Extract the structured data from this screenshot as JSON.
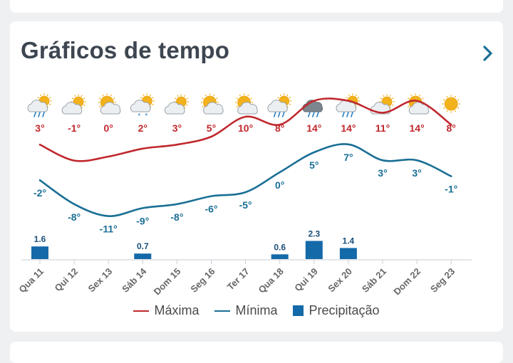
{
  "header": {
    "title": "Gráficos de tempo"
  },
  "colors": {
    "max": "#c0282d",
    "min": "#1a6f95",
    "precip": "#1469a8",
    "axis": "#666666"
  },
  "legend": {
    "max": "Máxima",
    "min": "Mínima",
    "precip": "Precipitação"
  },
  "chart_data": {
    "type": "line",
    "categories": [
      "Qua 11",
      "Qui 12",
      "Sex 13",
      "Sáb 14",
      "Dom 15",
      "Seg 16",
      "Ter 17",
      "Qua 18",
      "Qui 19",
      "Sex 20",
      "Sáb 21",
      "Dom 22",
      "Seg 23"
    ],
    "icons": [
      "rain-cloud-sun",
      "cloud-sun",
      "sun-cloud",
      "snow-cloud-sun",
      "cloud-sun",
      "sun-cloud",
      "sun-cloud",
      "rain-cloud-sun",
      "storm-cloud",
      "rain-cloud-sun",
      "cloud-sun",
      "sun-cloud",
      "sun"
    ],
    "series": [
      {
        "name": "Máxima",
        "values": [
          3,
          -1,
          0,
          2,
          3,
          5,
          10,
          8,
          14,
          14,
          11,
          14,
          8
        ],
        "labels": [
          "3°",
          "-1°",
          "0°",
          "2°",
          "3°",
          "5°",
          "10°",
          "8°",
          "14°",
          "14°",
          "11°",
          "14°",
          "8°"
        ]
      },
      {
        "name": "Mínima",
        "values": [
          -2,
          -8,
          -11,
          -9,
          -8,
          -6,
          -5,
          0,
          5,
          7,
          3,
          3,
          -1
        ],
        "labels": [
          "-2°",
          "-8°",
          "-11°",
          "-9°",
          "-8°",
          "-6°",
          "-5°",
          "0°",
          "5°",
          "7°",
          "3°",
          "3°",
          "-1°"
        ]
      },
      {
        "name": "Precipitação",
        "values": [
          1.6,
          0,
          0,
          0.7,
          0,
          0,
          0,
          0.6,
          2.3,
          1.4,
          0,
          0,
          0
        ],
        "labels": [
          "1.6",
          "",
          "",
          "0.7",
          "",
          "",
          "",
          "0.6",
          "2.3",
          "1.4",
          "",
          "",
          ""
        ]
      }
    ]
  }
}
